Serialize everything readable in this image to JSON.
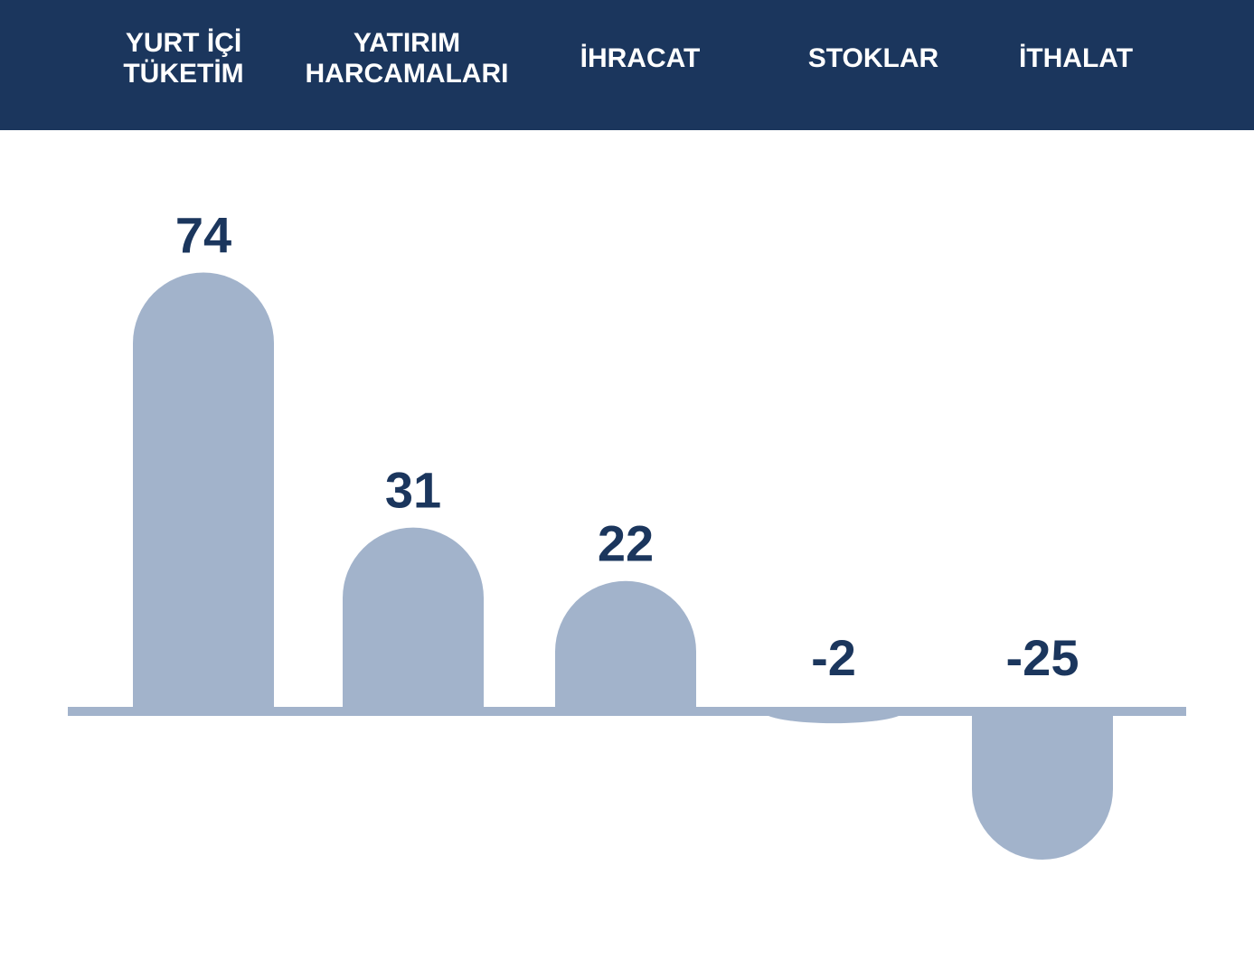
{
  "chart_data": {
    "type": "bar",
    "categories": [
      "YURT İÇİ\nTÜKETİM",
      "YATIRIM\nHARCAMALARI",
      "İHRACAT",
      "STOKLAR",
      "İTHALAT"
    ],
    "values": [
      74,
      31,
      22,
      -2,
      -25
    ],
    "value_labels": [
      "74",
      "31",
      "22",
      "-2",
      "-25"
    ],
    "title": "",
    "xlabel": "",
    "ylabel": "",
    "ylim": [
      -40,
      90
    ],
    "grid": false,
    "legend": "none"
  },
  "colors": {
    "header_bg": "#1b365d",
    "header_text": "#ffffff",
    "bar_fill": "#a2b3cb",
    "baseline": "#a2b3cb",
    "value_text": "#1b365d"
  }
}
